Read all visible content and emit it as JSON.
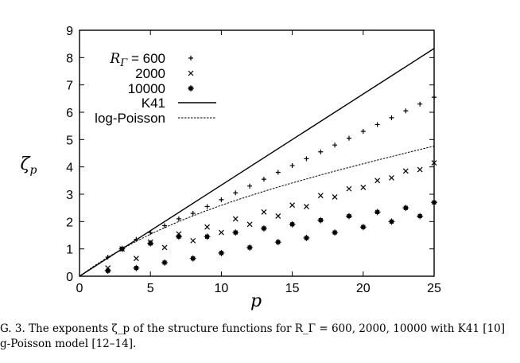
{
  "chart_data": {
    "type": "scatter",
    "xlabel": "p",
    "ylabel": "ζ_p",
    "xlim": [
      0,
      25
    ],
    "ylim": [
      0,
      9
    ],
    "xticks": [
      "0",
      "5",
      "10",
      "15",
      "20",
      "25"
    ],
    "yticks": [
      "0",
      "1",
      "2",
      "3",
      "4",
      "5",
      "6",
      "7",
      "8",
      "9"
    ],
    "legend_position": "top-left",
    "series": [
      {
        "name": "R_Γ = 600",
        "marker": "plus",
        "x": [
          2,
          3,
          4,
          5,
          6,
          7,
          8,
          9,
          10,
          11,
          12,
          13,
          14,
          15,
          16,
          17,
          18,
          19,
          20,
          21,
          22,
          23,
          24,
          25
        ],
        "y": [
          0.7,
          1.0,
          1.35,
          1.6,
          1.85,
          2.1,
          2.3,
          2.55,
          2.8,
          3.05,
          3.3,
          3.55,
          3.8,
          4.05,
          4.3,
          4.55,
          4.8,
          5.05,
          5.3,
          5.55,
          5.8,
          6.05,
          6.3,
          6.55
        ]
      },
      {
        "name": "2000",
        "marker": "cross",
        "x": [
          2,
          3,
          4,
          5,
          6,
          7,
          8,
          9,
          10,
          11,
          12,
          13,
          14,
          15,
          16,
          17,
          18,
          19,
          20,
          21,
          22,
          23,
          24,
          25
        ],
        "y": [
          0.3,
          1.0,
          0.65,
          1.25,
          1.05,
          1.55,
          1.3,
          1.8,
          1.6,
          2.1,
          1.9,
          2.35,
          2.2,
          2.6,
          2.55,
          2.95,
          2.9,
          3.2,
          3.25,
          3.5,
          3.6,
          3.85,
          3.9,
          4.15
        ]
      },
      {
        "name": "10000",
        "marker": "star",
        "x": [
          2,
          3,
          4,
          5,
          6,
          7,
          8,
          9,
          10,
          11,
          12,
          13,
          14,
          15,
          16,
          17,
          18,
          19,
          20,
          21,
          22,
          23,
          24,
          25
        ],
        "y": [
          0.2,
          1.0,
          0.3,
          1.2,
          0.5,
          1.45,
          0.65,
          1.45,
          0.85,
          1.6,
          1.05,
          1.75,
          1.25,
          1.9,
          1.4,
          2.05,
          1.6,
          2.2,
          1.8,
          2.35,
          2.0,
          2.5,
          2.2,
          2.7
        ]
      },
      {
        "name": "K41",
        "style": "solid",
        "x": [
          0,
          25
        ],
        "y": [
          0,
          8.333
        ]
      },
      {
        "name": "log-Poisson",
        "style": "dashed",
        "x": [
          0,
          1,
          2,
          3,
          4,
          5,
          6,
          7,
          8,
          9,
          10,
          11,
          12,
          13,
          14,
          15,
          16,
          17,
          18,
          19,
          20,
          21,
          22,
          23,
          24,
          25
        ],
        "y": [
          0,
          0.364,
          0.696,
          1.0,
          1.28,
          1.538,
          1.778,
          2.001,
          2.211,
          2.408,
          2.594,
          2.772,
          2.941,
          3.104,
          3.261,
          3.413,
          3.56,
          3.704,
          3.844,
          3.981,
          4.116,
          4.249,
          4.379,
          4.509,
          4.637,
          4.763
        ]
      }
    ]
  },
  "legend": {
    "r_label": "R",
    "r_sub": "Γ",
    "r_value": " = 600",
    "labels": [
      "2000",
      "10000",
      "K41",
      "log-Poisson"
    ]
  },
  "axes": {
    "xlabel": "p",
    "ylabel_main": "ζ",
    "ylabel_sub": "p"
  },
  "caption": {
    "line1": "G. 3. The exponents ζ_p of the structure functions for R_Γ = 600, 2000, 10000 with K41 [10]",
    "line2": "g-Poisson model [12–14]."
  }
}
